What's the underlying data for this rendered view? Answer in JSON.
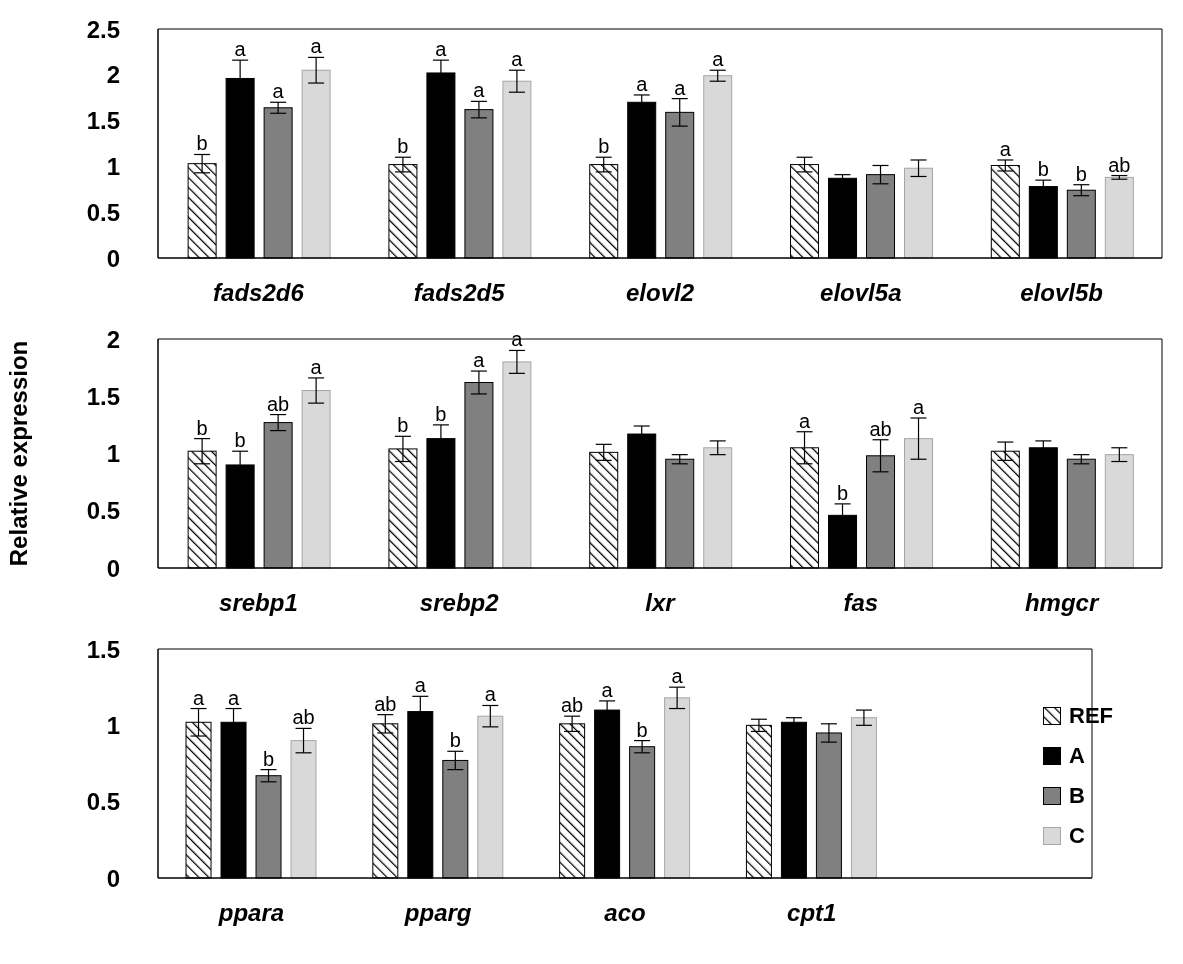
{
  "chart_data": [
    {
      "type": "bar",
      "categories": [
        "fads2d6",
        "fads2d5",
        "elovl2",
        "elovl5a",
        "elovl5b"
      ],
      "ylim": [
        0,
        2.5
      ],
      "yticks": [
        0,
        0.5,
        1,
        1.5,
        2,
        2.5
      ],
      "legend": false,
      "series": [
        {
          "color": "#000000",
          "values": [
            1.03,
            1.02,
            1.02,
            1.02,
            1.01
          ],
          "errors": [
            0.1,
            0.08,
            0.08,
            0.08,
            0.06
          ],
          "value_labels": [
            "b",
            "b",
            "b",
            null,
            "a"
          ]
        },
        {
          "color": "#000000",
          "values": [
            1.96,
            2.02,
            1.7,
            0.87,
            0.78
          ],
          "errors": [
            0.2,
            0.14,
            0.08,
            0.04,
            0.07
          ],
          "value_labels": [
            "a",
            "a",
            "a",
            null,
            "b"
          ]
        },
        {
          "color": "#808080",
          "values": [
            1.64,
            1.62,
            1.59,
            0.91,
            0.74
          ],
          "errors": [
            0.06,
            0.09,
            0.15,
            0.1,
            0.06
          ],
          "value_labels": [
            "a",
            "a",
            "a",
            null,
            "b"
          ]
        },
        {
          "color": "#d9d9d9",
          "values": [
            2.05,
            1.93,
            1.99,
            0.98,
            0.88
          ],
          "errors": [
            0.14,
            0.12,
            0.06,
            0.09,
            0.02
          ],
          "value_labels": [
            "a",
            "a",
            "a",
            null,
            "ab"
          ]
        }
      ]
    },
    {
      "type": "bar",
      "ylabel": "Relative expression",
      "categories": [
        "srebp1",
        "srebp2",
        "lxr",
        "fas",
        "hmgcr"
      ],
      "ylim": [
        0,
        2
      ],
      "yticks": [
        0,
        0.5,
        1,
        1.5,
        2
      ],
      "legend": false,
      "series": [
        {
          "color": "#000000",
          "values": [
            1.02,
            1.04,
            1.01,
            1.05,
            1.02
          ],
          "errors": [
            0.11,
            0.11,
            0.07,
            0.14,
            0.08
          ],
          "value_labels": [
            "b",
            "b",
            null,
            "a",
            null
          ]
        },
        {
          "color": "#000000",
          "values": [
            0.9,
            1.13,
            1.17,
            0.46,
            1.05
          ],
          "errors": [
            0.12,
            0.12,
            0.07,
            0.1,
            0.06
          ],
          "value_labels": [
            "b",
            "b",
            null,
            "b",
            null
          ]
        },
        {
          "color": "#808080",
          "values": [
            1.27,
            1.62,
            0.95,
            0.98,
            0.95
          ],
          "errors": [
            0.07,
            0.1,
            0.04,
            0.14,
            0.04
          ],
          "value_labels": [
            "ab",
            "a",
            null,
            "ab",
            null
          ]
        },
        {
          "color": "#d9d9d9",
          "values": [
            1.55,
            1.8,
            1.05,
            1.13,
            0.99
          ],
          "errors": [
            0.11,
            0.1,
            0.06,
            0.18,
            0.06
          ],
          "value_labels": [
            "a",
            "a",
            null,
            "a",
            null
          ]
        }
      ]
    },
    {
      "type": "bar",
      "categories": [
        "ppara",
        "pparg",
        "aco",
        "cpt1",
        null
      ],
      "ylim": [
        0,
        1.5
      ],
      "yticks": [
        0,
        0.5,
        1,
        1.5
      ],
      "legend": "right",
      "series": [
        {
          "name": "REF",
          "color": "#000000",
          "values": [
            1.02,
            1.01,
            1.01,
            1.0,
            null
          ],
          "errors": [
            0.09,
            0.06,
            0.05,
            0.04,
            null
          ],
          "value_labels": [
            "a",
            "ab",
            "ab",
            null,
            null
          ]
        },
        {
          "name": "A",
          "color": "#000000",
          "values": [
            1.02,
            1.09,
            1.1,
            1.02,
            null
          ],
          "errors": [
            0.09,
            0.1,
            0.06,
            0.03,
            null
          ],
          "value_labels": [
            "a",
            "a",
            "a",
            null,
            null
          ]
        },
        {
          "name": "B",
          "color": "#808080",
          "values": [
            0.67,
            0.77,
            0.86,
            0.95,
            null
          ],
          "errors": [
            0.04,
            0.06,
            0.04,
            0.06,
            null
          ],
          "value_labels": [
            "b",
            "b",
            "b",
            null,
            null
          ]
        },
        {
          "name": "C",
          "color": "#d9d9d9",
          "values": [
            0.9,
            1.06,
            1.18,
            1.05,
            null
          ],
          "errors": [
            0.08,
            0.07,
            0.07,
            0.05,
            null
          ],
          "value_labels": [
            "ab",
            "a",
            "a",
            null,
            null
          ]
        }
      ]
    }
  ]
}
